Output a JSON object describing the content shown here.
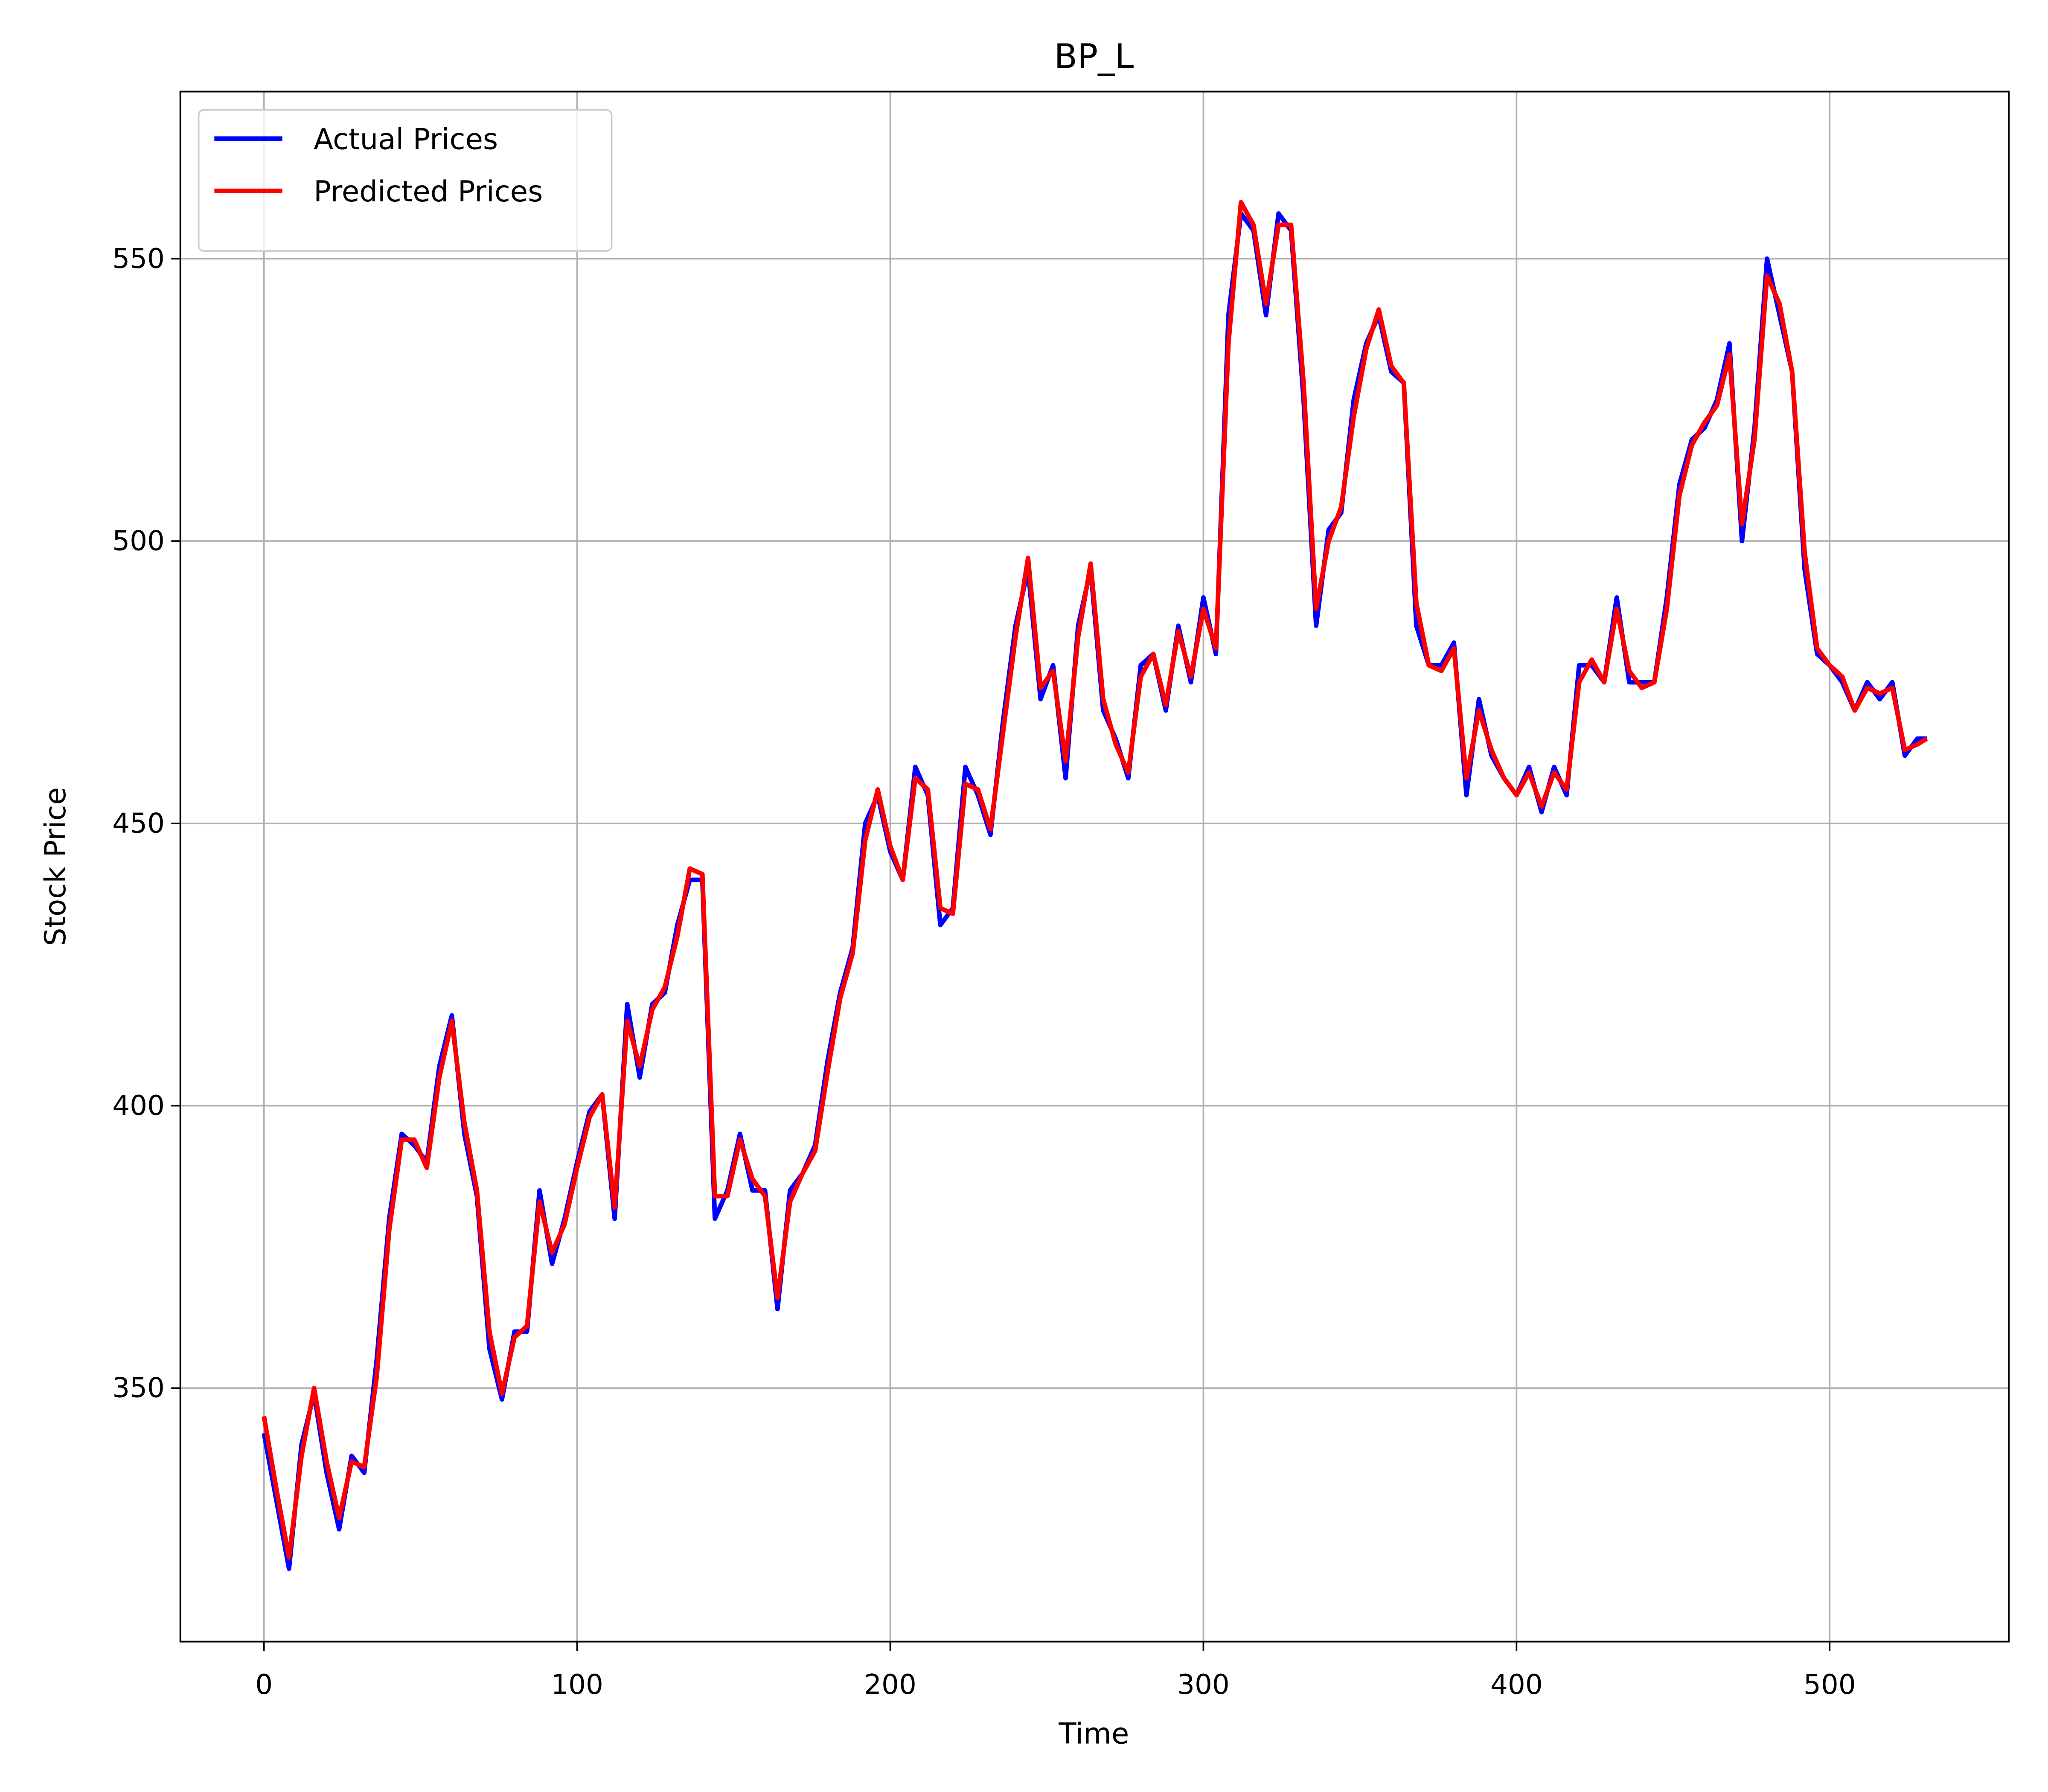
{
  "chart_data": {
    "type": "line",
    "title": "BP_L",
    "x_label": "Time",
    "y_label": "Stock Price",
    "x": [
      0,
      4,
      8,
      12,
      16,
      20,
      24,
      28,
      32,
      36,
      40,
      44,
      48,
      52,
      56,
      60,
      64,
      68,
      72,
      76,
      80,
      84,
      88,
      92,
      96,
      100,
      104,
      108,
      112,
      116,
      120,
      124,
      128,
      132,
      136,
      140,
      144,
      148,
      152,
      156,
      160,
      164,
      168,
      172,
      176,
      180,
      184,
      188,
      192,
      196,
      200,
      204,
      208,
      212,
      216,
      220,
      224,
      228,
      232,
      236,
      240,
      244,
      248,
      252,
      256,
      260,
      264,
      268,
      272,
      276,
      280,
      284,
      288,
      292,
      296,
      300,
      304,
      308,
      312,
      316,
      320,
      324,
      328,
      332,
      336,
      340,
      344,
      348,
      352,
      356,
      360,
      364,
      368,
      372,
      376,
      380,
      384,
      388,
      392,
      396,
      400,
      404,
      408,
      412,
      416,
      420,
      424,
      428,
      432,
      436,
      440,
      444,
      448,
      452,
      456,
      460,
      464,
      468,
      472,
      476,
      480,
      484,
      488,
      492,
      496,
      500,
      504,
      508,
      512,
      516,
      520,
      524,
      528,
      531
    ],
    "series": [
      {
        "name": "Actual Prices",
        "color": "#0000ff",
        "values": [
          342,
          330,
          318,
          340,
          349,
          335,
          325,
          338,
          335,
          355,
          380,
          395,
          393,
          390,
          407,
          416,
          395,
          384,
          357,
          348,
          360,
          360,
          385,
          372,
          380,
          390,
          399,
          402,
          380,
          418,
          405,
          418,
          420,
          432,
          440,
          440,
          380,
          385,
          395,
          385,
          385,
          364,
          385,
          388,
          393,
          408,
          420,
          428,
          450,
          455,
          445,
          440,
          460,
          455,
          432,
          435,
          460,
          455,
          448,
          468,
          485,
          495,
          472,
          478,
          458,
          485,
          495,
          470,
          465,
          458,
          478,
          480,
          470,
          485,
          475,
          490,
          480,
          540,
          558,
          555,
          540,
          558,
          555,
          525,
          485,
          502,
          505,
          525,
          535,
          540,
          530,
          528,
          485,
          478,
          478,
          482,
          455,
          472,
          462,
          458,
          455,
          460,
          452,
          460,
          455,
          478,
          478,
          475,
          490,
          475,
          475,
          475,
          490,
          510,
          518,
          520,
          525,
          535,
          500,
          520,
          550,
          540,
          530,
          495,
          480,
          478,
          475,
          470,
          475,
          472,
          475,
          462,
          465,
          465
        ]
      },
      {
        "name": "Predicted Prices",
        "color": "#ff0000",
        "values": [
          345,
          332,
          320,
          338,
          350,
          337,
          327,
          337,
          336,
          352,
          378,
          394,
          394,
          389,
          405,
          415,
          397,
          385,
          360,
          349,
          359,
          361,
          383,
          374,
          379,
          389,
          398,
          402,
          382,
          415,
          407,
          417,
          421,
          430,
          442,
          441,
          384,
          384,
          394,
          387,
          384,
          366,
          383,
          388,
          392,
          406,
          419,
          427,
          447,
          456,
          446,
          440,
          458,
          456,
          435,
          434,
          457,
          456,
          449,
          466,
          483,
          497,
          474,
          477,
          461,
          483,
          496,
          472,
          464,
          459,
          476,
          480,
          471,
          484,
          476,
          488,
          481,
          535,
          560,
          556,
          542,
          556,
          556,
          528,
          488,
          500,
          506,
          522,
          534,
          541,
          531,
          528,
          489,
          478,
          477,
          481,
          458,
          470,
          463,
          458,
          455,
          459,
          453,
          459,
          456,
          475,
          479,
          475,
          488,
          477,
          474,
          475,
          488,
          508,
          517,
          521,
          524,
          533,
          503,
          518,
          547,
          542,
          530,
          498,
          481,
          478,
          476,
          470,
          474,
          473,
          474,
          463,
          464,
          465
        ]
      }
    ],
    "xlim": [
      -26.7,
      557.2
    ],
    "ylim": [
      305.1,
      579.6
    ],
    "xticks": [
      0,
      100,
      200,
      300,
      400,
      500
    ],
    "yticks": [
      350,
      400,
      450,
      500,
      550
    ],
    "grid": true,
    "legend": "upper left"
  }
}
